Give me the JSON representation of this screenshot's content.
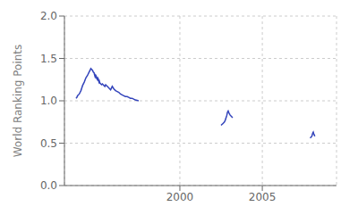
{
  "chart_data": {
    "type": "line",
    "ylabel": "World Ranking Points",
    "xlim": [
      1993.0,
      2009.5
    ],
    "xticks": [
      2000,
      2005
    ],
    "ylim": [
      0,
      2
    ],
    "yticks": [
      {
        "value": 0,
        "label": "0.0"
      },
      0.5,
      {
        "value": 1.0,
        "label": "1.0"
      },
      1.5,
      {
        "value": 2.0,
        "label": "2.0"
      }
    ],
    "grid": true,
    "series": [
      {
        "color": "#3344bb",
        "x": [
          1993.7,
          1993.75,
          1993.8,
          1993.85,
          1993.9,
          1993.95,
          1994.0,
          1994.05,
          1994.1,
          1994.2,
          1994.3,
          1994.4,
          1994.5,
          1994.55,
          1994.6,
          1994.65,
          1994.7,
          1994.75,
          1994.8,
          1994.82,
          1994.85,
          1994.87,
          1994.9,
          1994.92,
          1994.95,
          1994.97,
          1995.0,
          1995.02,
          1995.05,
          1995.07,
          1995.1,
          1995.12,
          1995.15,
          1995.2,
          1995.25,
          1995.3,
          1995.35,
          1995.4,
          1995.45,
          1995.5,
          1995.55,
          1995.6,
          1995.65,
          1995.7,
          1995.75,
          1995.8,
          1995.9,
          1996.0,
          1996.1,
          1996.2,
          1996.3,
          1996.4,
          1996.5,
          1996.6,
          1996.7,
          1996.8,
          1996.9,
          1997.0,
          1997.1,
          1997.2,
          1997.3,
          1997.4,
          1997.5
        ],
        "values": [
          1.03,
          1.04,
          1.06,
          1.07,
          1.08,
          1.1,
          1.12,
          1.15,
          1.18,
          1.22,
          1.27,
          1.3,
          1.34,
          1.36,
          1.38,
          1.37,
          1.36,
          1.34,
          1.33,
          1.31,
          1.29,
          1.3,
          1.28,
          1.29,
          1.27,
          1.26,
          1.25,
          1.27,
          1.26,
          1.24,
          1.22,
          1.23,
          1.21,
          1.2,
          1.19,
          1.2,
          1.19,
          1.18,
          1.17,
          1.19,
          1.18,
          1.17,
          1.16,
          1.15,
          1.14,
          1.13,
          1.17,
          1.14,
          1.12,
          1.11,
          1.1,
          1.08,
          1.07,
          1.06,
          1.05,
          1.05,
          1.04,
          1.03,
          1.03,
          1.02,
          1.01,
          1.005,
          1.0
        ]
      },
      {
        "color": "#3344bb",
        "x": [
          2002.5,
          2002.55,
          2002.6,
          2002.65,
          2002.7,
          2002.75,
          2002.8,
          2002.85,
          2002.88,
          2002.9,
          2002.93,
          2002.95,
          2002.97,
          2003.0,
          2003.05,
          2003.1,
          2003.15,
          2003.2
        ],
        "values": [
          0.71,
          0.72,
          0.73,
          0.74,
          0.75,
          0.77,
          0.8,
          0.83,
          0.86,
          0.87,
          0.88,
          0.87,
          0.86,
          0.85,
          0.83,
          0.82,
          0.81,
          0.8
        ]
      },
      {
        "color": "#3344bb",
        "x": [
          2007.9,
          2007.95,
          2008.0,
          2008.03,
          2008.06,
          2008.09,
          2008.12,
          2008.15,
          2008.18
        ],
        "values": [
          0.56,
          0.57,
          0.58,
          0.6,
          0.62,
          0.63,
          0.61,
          0.6,
          0.58
        ]
      }
    ]
  }
}
